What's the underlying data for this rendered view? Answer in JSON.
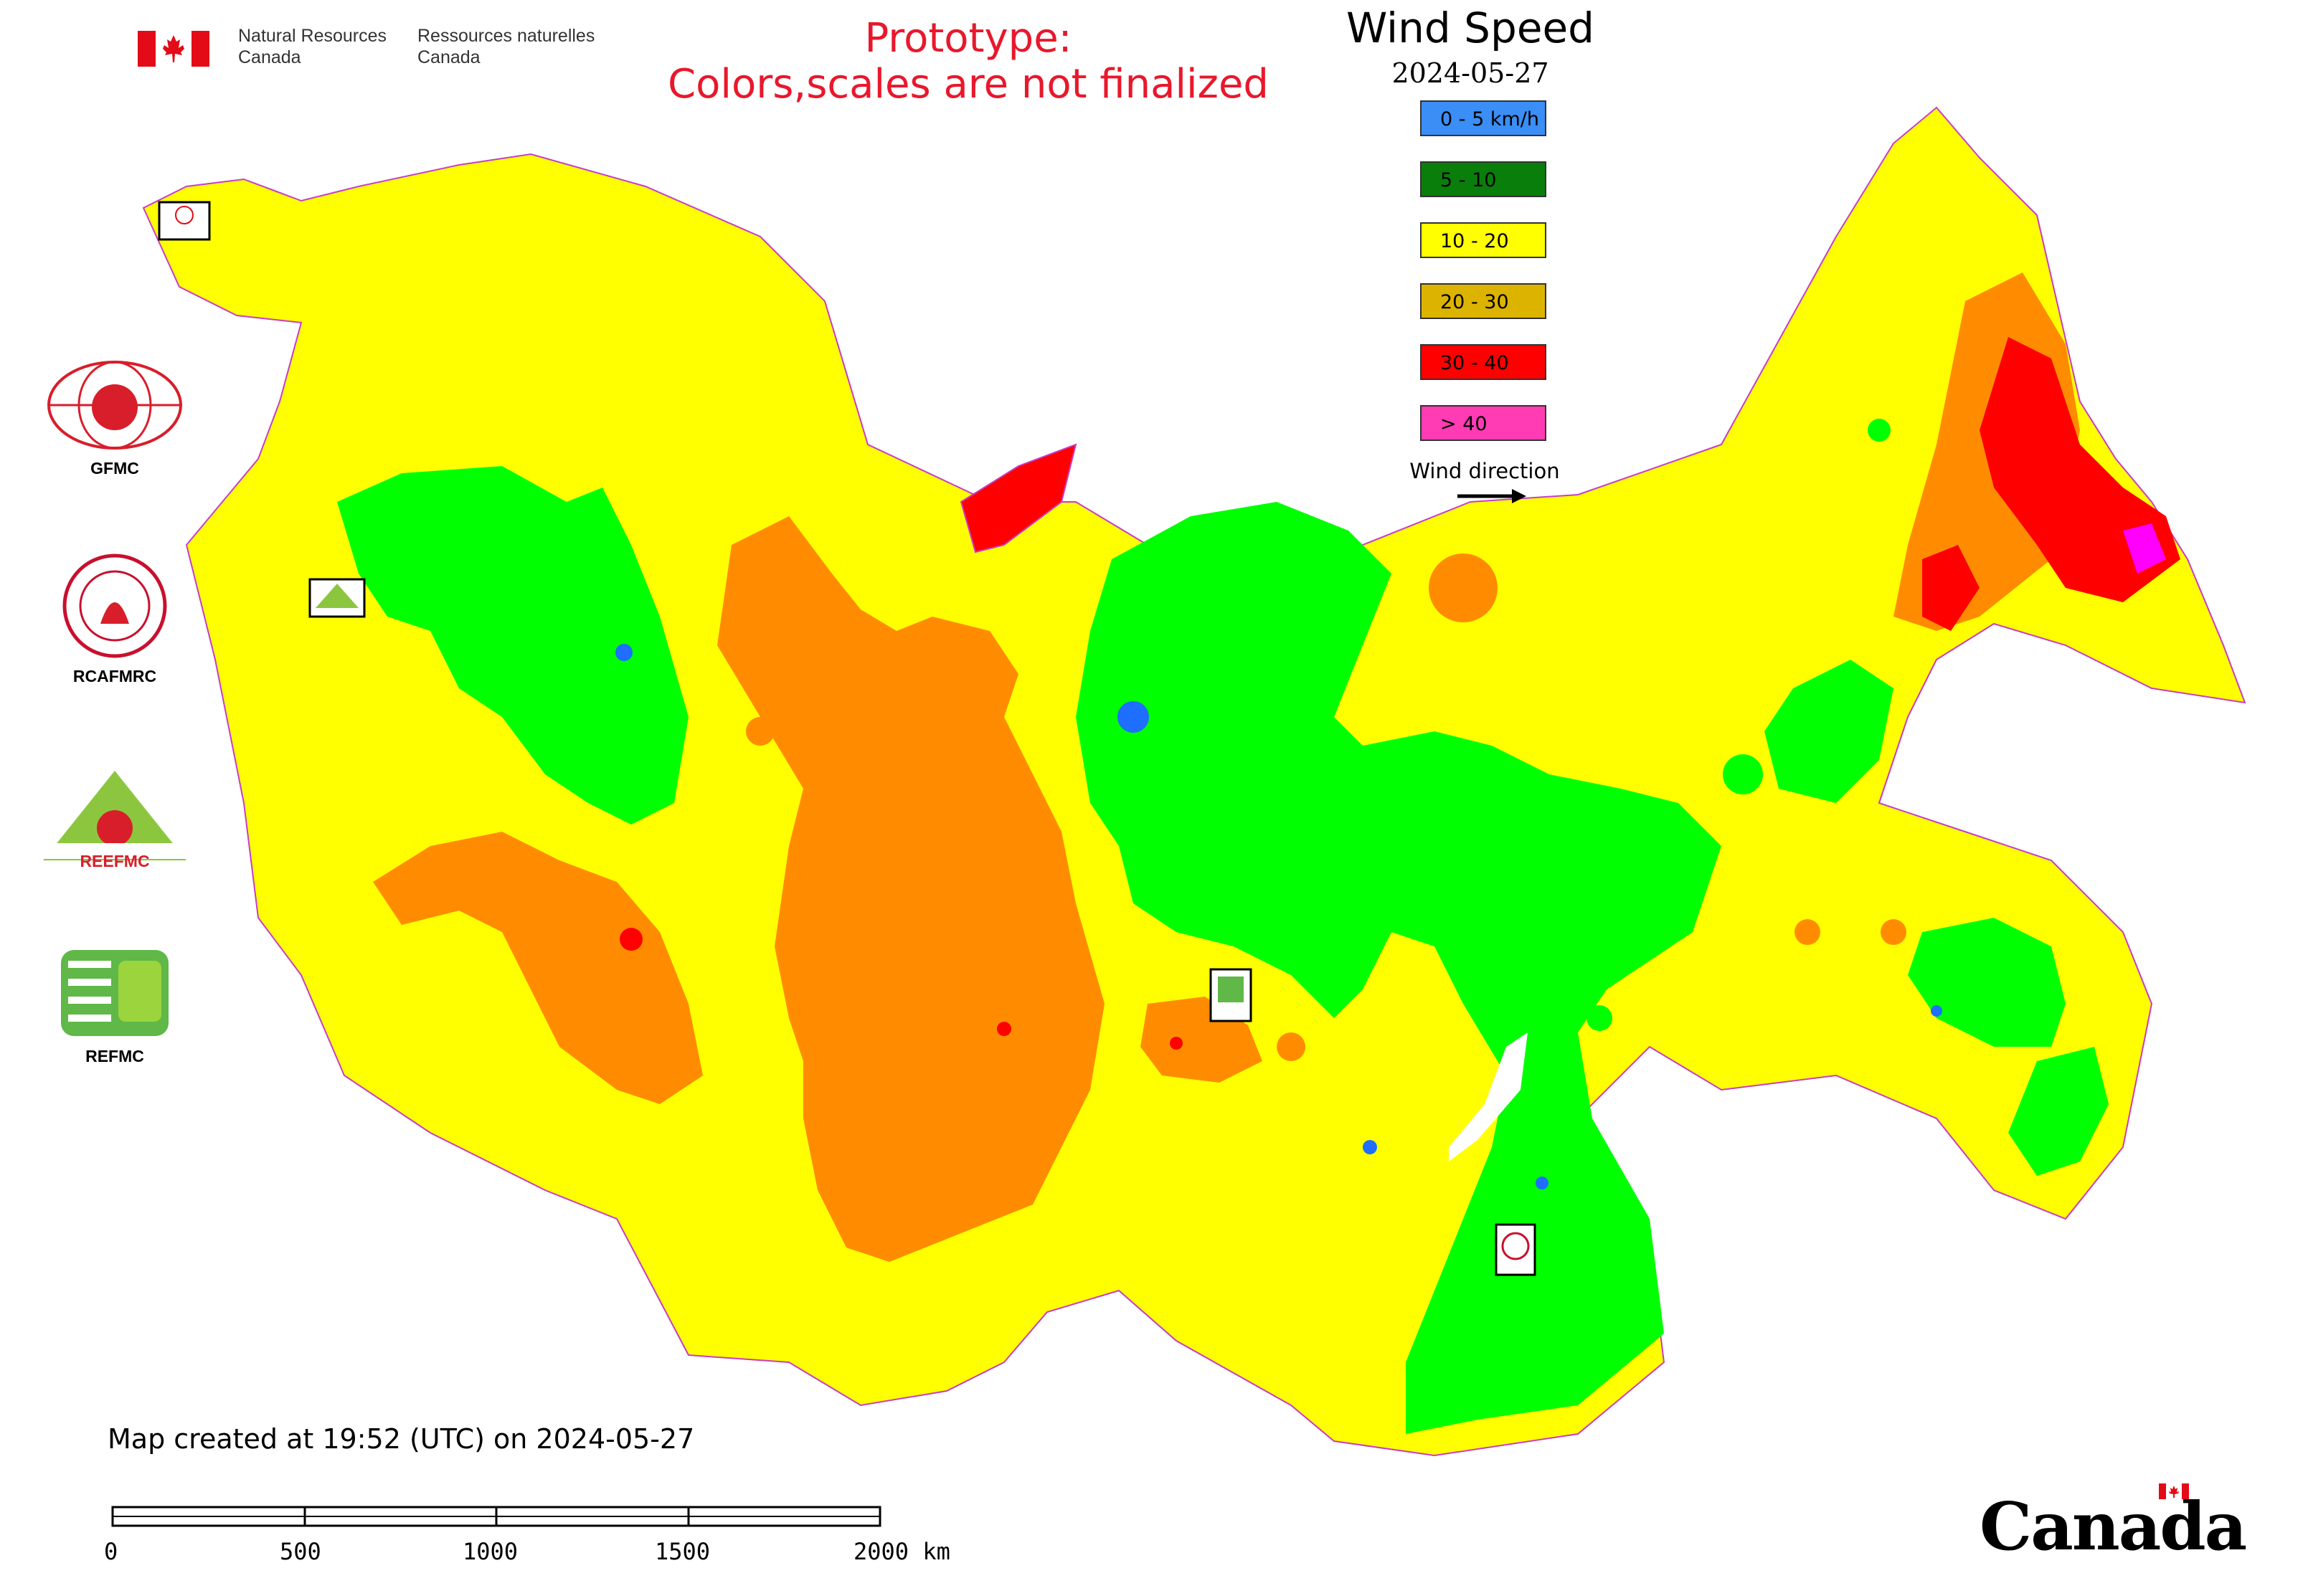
{
  "header": {
    "dept_en_1": "Natural Resources",
    "dept_en_2": "Canada",
    "dept_fr_1": "Ressources naturelles",
    "dept_fr_2": "Canada"
  },
  "prototype_notice": {
    "line1": "Prototype:",
    "line2": "Colors,scales are not finalized",
    "color": "#e8182c"
  },
  "legend": {
    "title": "Wind Speed",
    "date": "2024-05-27",
    "classes": [
      {
        "label": "0 - 5 km/h",
        "color": "#3a8ef6"
      },
      {
        "label": "5 - 10",
        "color": "#0a7e0a"
      },
      {
        "label": "10 - 20",
        "color": "#ffff00"
      },
      {
        "label": "20 - 30",
        "color": "#dcb400"
      },
      {
        "label": "30 - 40",
        "color": "#ff0000"
      },
      {
        "label": "> 40",
        "color": "#ff3cb4"
      }
    ],
    "direction_label": "Wind direction",
    "direction_icon": "right-arrow-icon"
  },
  "side_logos": [
    {
      "label": "GFMC",
      "icon": "gfmc-logo"
    },
    {
      "label": "RCAFMRC",
      "icon": "rcafmrc-logo"
    },
    {
      "label": "REEFMC",
      "icon": "reefmc-logo"
    },
    {
      "label": "REFMC",
      "icon": "refmc-logo"
    }
  ],
  "map_markers": [
    {
      "label": "GFMC",
      "icon": "gfmc-marker"
    },
    {
      "label": "REEFMC",
      "icon": "reefmc-marker"
    },
    {
      "label": "REFMC",
      "icon": "refmc-marker"
    },
    {
      "label": "RCAFMRC",
      "icon": "rcafmrc-marker"
    }
  ],
  "map_colors": {
    "yellow": "#ffff00",
    "green": "#00ff00",
    "orange": "#ff8c00",
    "red": "#ff0000",
    "magenta": "#ff00ff",
    "blue": "#1e6eff",
    "border": "#c83cc8"
  },
  "footer": {
    "created": "Map created at 19:52 (UTC) on 2024-05-27",
    "scale_ticks": [
      "0",
      "500",
      "1000",
      "1500",
      "2000 km"
    ],
    "wordmark": "Canada"
  }
}
